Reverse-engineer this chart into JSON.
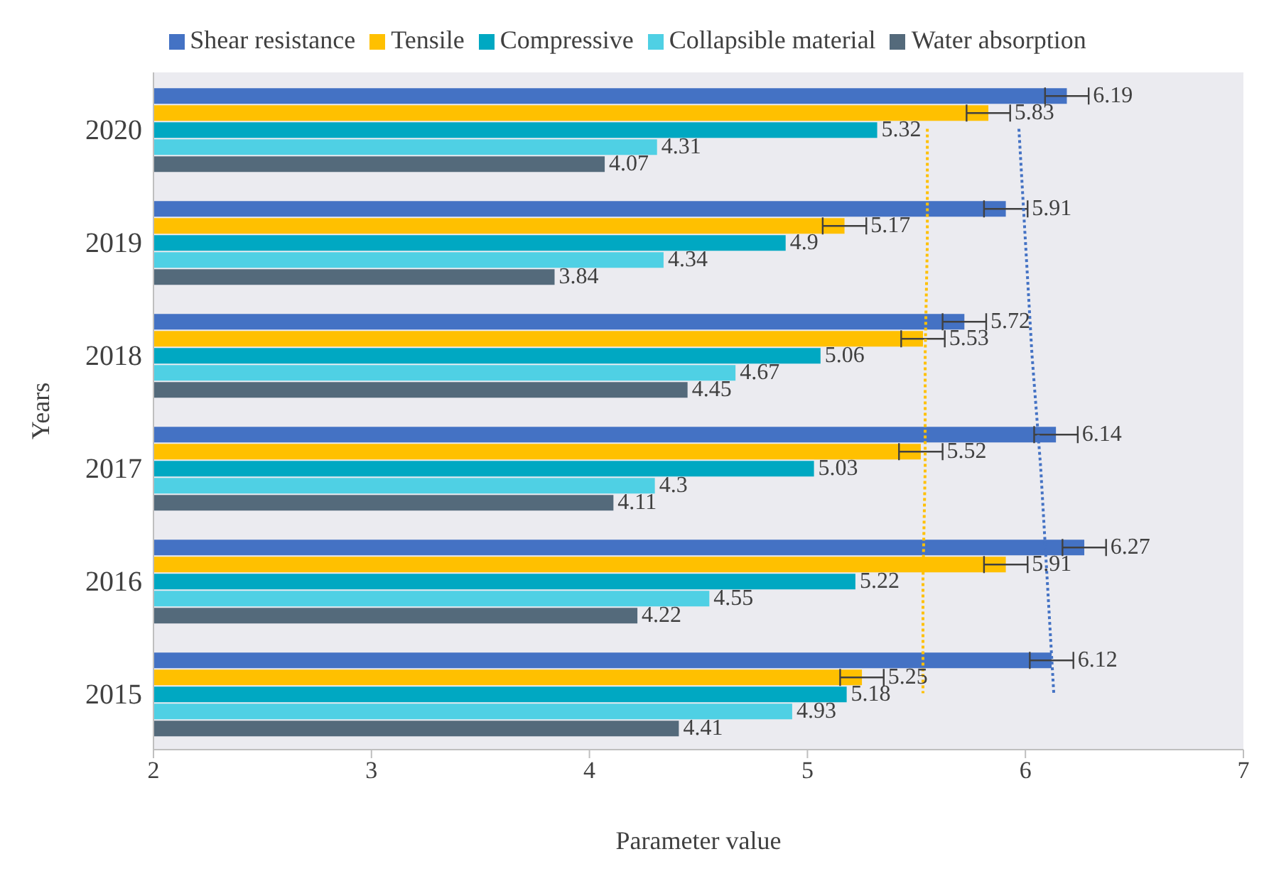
{
  "chart_data": {
    "type": "bar",
    "orientation": "horizontal",
    "xlabel": "Parameter value",
    "ylabel": "Years",
    "categories": [
      "2020",
      "2019",
      "2018",
      "2017",
      "2016",
      "2015"
    ],
    "series": [
      {
        "name": "Shear resistance",
        "color": "#4472c4",
        "values": [
          6.19,
          5.91,
          5.72,
          6.14,
          6.27,
          6.12
        ],
        "errors": [
          0.1,
          0.1,
          0.1,
          0.1,
          0.1,
          0.1
        ],
        "value_labels": [
          "6.19",
          "5.91",
          "5.72",
          "6.14",
          "6.27",
          "6.12"
        ]
      },
      {
        "name": "Tensile",
        "color": "#ffc000",
        "values": [
          5.83,
          5.17,
          5.53,
          5.52,
          5.91,
          5.25
        ],
        "errors": [
          0.1,
          0.1,
          0.1,
          0.1,
          0.1,
          0.1
        ],
        "value_labels": [
          "5.83",
          "5.17",
          "5.53",
          "5.52",
          "5.91",
          "5.25"
        ]
      },
      {
        "name": "Compressive",
        "color": "#00a8c2",
        "values": [
          5.32,
          4.9,
          5.06,
          5.03,
          5.22,
          5.18
        ],
        "value_labels": [
          "5.32",
          "4.9",
          "5.06",
          "5.03",
          "5.22",
          "5.18"
        ]
      },
      {
        "name": "Collapsible material",
        "color": "#4fd0e4",
        "values": [
          4.31,
          4.34,
          4.67,
          4.3,
          4.55,
          4.93
        ],
        "value_labels": [
          "4.31",
          "4.34",
          "4.67",
          "4.3",
          "4.55",
          "4.93"
        ]
      },
      {
        "name": "Water absorption",
        "color": "#546a7b",
        "values": [
          4.07,
          3.84,
          4.45,
          4.11,
          4.22,
          4.41
        ],
        "value_labels": [
          "4.07",
          "3.84",
          "4.45",
          "4.11",
          "4.22",
          "4.41"
        ]
      },
      {
        "type": "line",
        "color": "#ffc000",
        "line_style": "dotted",
        "marker": "none",
        "values": [
          5.55,
          5.55,
          5.54,
          5.54,
          5.53,
          5.53
        ]
      },
      {
        "type": "line",
        "color": "#4472c4",
        "line_style": "dotted",
        "marker": "none",
        "values": [
          5.97,
          6.0,
          6.03,
          6.07,
          6.1,
          6.13
        ]
      }
    ],
    "xlim": [
      2,
      7
    ],
    "xticks": [
      2,
      3,
      4,
      5,
      6,
      7
    ],
    "legend": "top"
  }
}
